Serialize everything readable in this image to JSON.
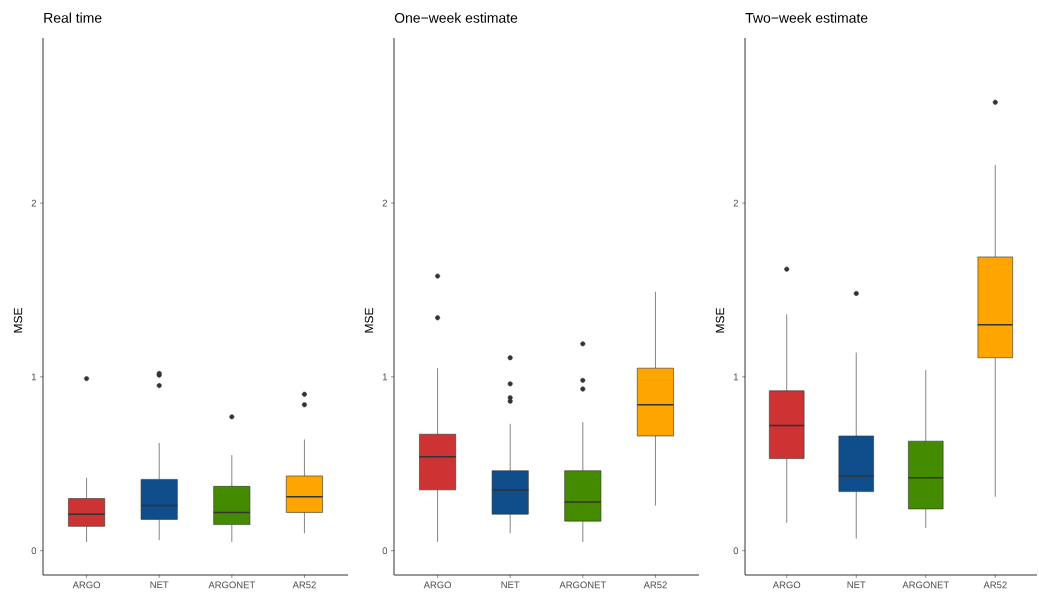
{
  "chart_data": [
    {
      "type": "box",
      "title": "Real time",
      "ylabel": "MSE",
      "categories": [
        "ARGO",
        "NET",
        "ARGONET",
        "AR52"
      ],
      "colors": [
        "#cd3333",
        "#104e8b",
        "#458b00",
        "#ffa500"
      ],
      "ylim": [
        -0.14,
        2.95
      ],
      "yticks": [
        0,
        1,
        2
      ],
      "boxes": [
        {
          "low": 0.05,
          "q1": 0.14,
          "median": 0.21,
          "q3": 0.3,
          "high": 0.42,
          "outliers": [
            0.99
          ]
        },
        {
          "low": 0.06,
          "q1": 0.18,
          "median": 0.26,
          "q3": 0.41,
          "high": 0.62,
          "outliers": [
            0.95,
            1.01,
            1.02
          ]
        },
        {
          "low": 0.05,
          "q1": 0.15,
          "median": 0.22,
          "q3": 0.37,
          "high": 0.55,
          "outliers": [
            0.77
          ]
        },
        {
          "low": 0.1,
          "q1": 0.22,
          "median": 0.31,
          "q3": 0.43,
          "high": 0.64,
          "outliers": [
            0.84,
            0.9
          ]
        }
      ]
    },
    {
      "type": "box",
      "title": "One−week estimate",
      "ylabel": "MSE",
      "categories": [
        "ARGO",
        "NET",
        "ARGONET",
        "AR52"
      ],
      "colors": [
        "#cd3333",
        "#104e8b",
        "#458b00",
        "#ffa500"
      ],
      "ylim": [
        -0.14,
        2.95
      ],
      "yticks": [
        0,
        1,
        2
      ],
      "boxes": [
        {
          "low": 0.05,
          "q1": 0.35,
          "median": 0.54,
          "q3": 0.67,
          "high": 1.05,
          "outliers": [
            1.34,
            1.58
          ]
        },
        {
          "low": 0.1,
          "q1": 0.21,
          "median": 0.35,
          "q3": 0.46,
          "high": 0.73,
          "outliers": [
            0.86,
            0.88,
            0.96,
            1.11
          ]
        },
        {
          "low": 0.05,
          "q1": 0.17,
          "median": 0.28,
          "q3": 0.46,
          "high": 0.74,
          "outliers": [
            0.93,
            0.98,
            1.19
          ]
        },
        {
          "low": 0.26,
          "q1": 0.66,
          "median": 0.84,
          "q3": 1.05,
          "high": 1.49
        }
      ]
    },
    {
      "type": "box",
      "title": "Two−week estimate",
      "ylabel": "MSE",
      "categories": [
        "ARGO",
        "NET",
        "ARGONET",
        "AR52"
      ],
      "colors": [
        "#cd3333",
        "#104e8b",
        "#458b00",
        "#ffa500"
      ],
      "ylim": [
        -0.14,
        2.95
      ],
      "yticks": [
        0,
        1,
        2
      ],
      "boxes": [
        {
          "low": 0.16,
          "q1": 0.53,
          "median": 0.72,
          "q3": 0.92,
          "high": 1.36,
          "outliers": [
            1.62
          ]
        },
        {
          "low": 0.07,
          "q1": 0.34,
          "median": 0.43,
          "q3": 0.66,
          "high": 1.14,
          "outliers": [
            1.48
          ]
        },
        {
          "low": 0.13,
          "q1": 0.24,
          "median": 0.42,
          "q3": 0.63,
          "high": 1.04
        },
        {
          "low": 0.31,
          "q1": 1.11,
          "median": 1.3,
          "q3": 1.69,
          "high": 2.22,
          "outliers": [
            2.58
          ]
        }
      ]
    }
  ]
}
